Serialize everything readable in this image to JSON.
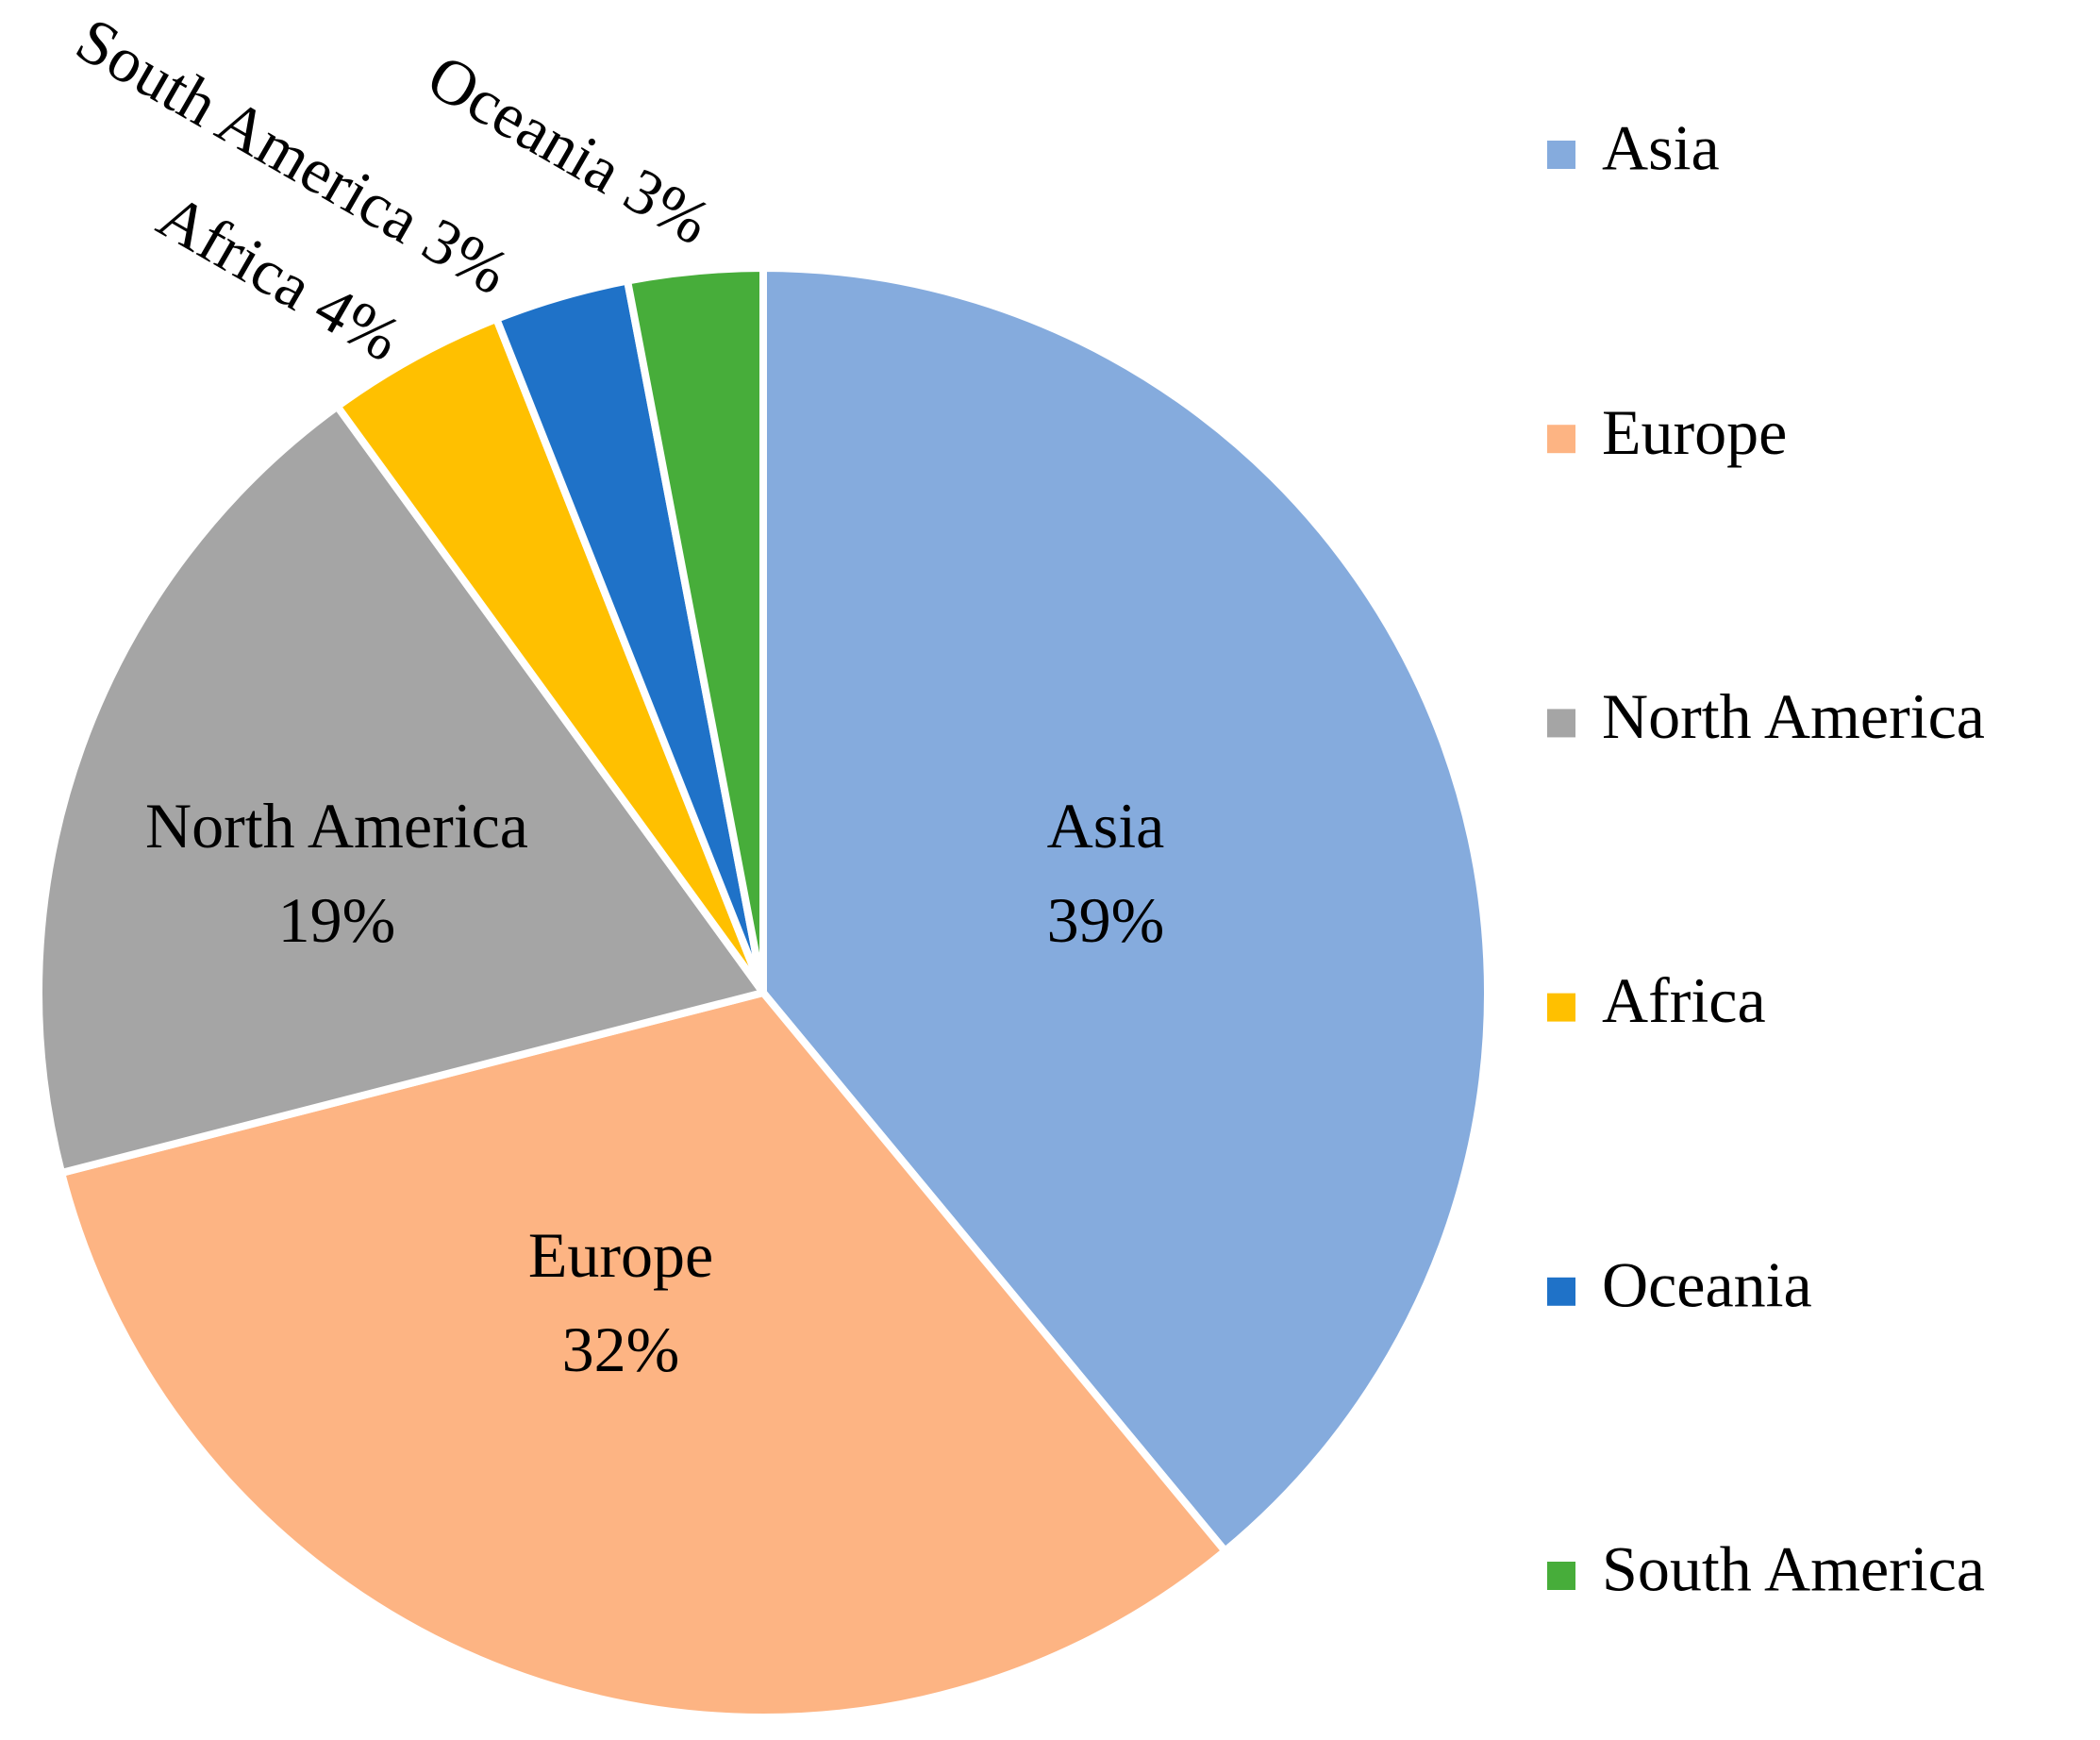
{
  "chart_data": {
    "type": "pie",
    "categories": [
      "Asia",
      "Europe",
      "North America",
      "Africa",
      "Oceania",
      "South America"
    ],
    "values": [
      39,
      32,
      19,
      4,
      3,
      3
    ],
    "value_labels": [
      "39%",
      "32%",
      "19%",
      "4%",
      "3%",
      "3%"
    ],
    "colors": [
      "#85abdd",
      "#fdb483",
      "#a5a5a5",
      "#ffc000",
      "#1f72c8",
      "#47ad3a"
    ],
    "legend": "right"
  }
}
